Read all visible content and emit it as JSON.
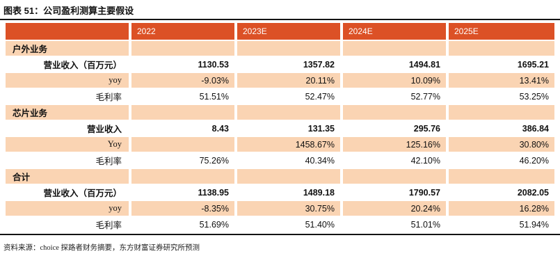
{
  "title": "图表 51：公司盈利测算主要假设",
  "footer_source": "资料来源：choice 探路者财务摘要，东方财富证券研究所预测",
  "colors": {
    "header_bg": "#DC5126",
    "alt_row_bg": "#FAD4B3",
    "header_text": "#FFFFFF",
    "body_text": "#111111",
    "rule": "#141414"
  },
  "chart_data": {
    "type": "table",
    "title": "图表 51：公司盈利测算主要假设",
    "columns": [
      "",
      "2022",
      "2023E",
      "2024E",
      "2025E"
    ],
    "sections": [
      {
        "header": "户外业务",
        "rows": [
          {
            "label": "营业收入（百万元）",
            "bold": true,
            "values": [
              "1130.53",
              "1357.82",
              "1494.81",
              "1695.21"
            ]
          },
          {
            "label": "yoy",
            "bold": false,
            "values": [
              "-9.03%",
              "20.11%",
              "10.09%",
              "13.41%"
            ]
          },
          {
            "label": "毛利率",
            "bold": false,
            "values": [
              "51.51%",
              "52.47%",
              "52.77%",
              "53.25%"
            ]
          }
        ]
      },
      {
        "header": "芯片业务",
        "rows": [
          {
            "label": "营业收入",
            "bold": true,
            "values": [
              "8.43",
              "131.35",
              "295.76",
              "386.84"
            ]
          },
          {
            "label": "Yoy",
            "bold": false,
            "values": [
              "",
              "1458.67%",
              "125.16%",
              "30.80%"
            ]
          },
          {
            "label": "毛利率",
            "bold": false,
            "values": [
              "75.26%",
              "40.34%",
              "42.10%",
              "46.20%"
            ]
          }
        ]
      },
      {
        "header": "合计",
        "rows": [
          {
            "label": "营业收入（百万元）",
            "bold": true,
            "values": [
              "1138.95",
              "1489.18",
              "1790.57",
              "2082.05"
            ]
          },
          {
            "label": "yoy",
            "bold": false,
            "values": [
              "-8.35%",
              "30.75%",
              "20.24%",
              "16.28%"
            ]
          },
          {
            "label": "毛利率",
            "bold": false,
            "values": [
              "51.69%",
              "51.40%",
              "51.01%",
              "51.94%"
            ]
          }
        ]
      }
    ],
    "source": "资料来源：choice 探路者财务摘要，东方财富证券研究所预测",
    "layout": {
      "header_align": "left",
      "values_align": "right",
      "row_striping": "alternating peach/white"
    }
  }
}
